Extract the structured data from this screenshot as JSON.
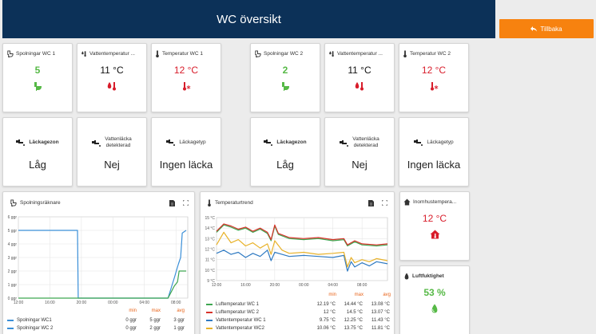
{
  "header": {
    "title": "WC översikt"
  },
  "back_button": {
    "label": "Tillbaka"
  },
  "wc1": {
    "flush": {
      "title": "Spolningar WC 1",
      "value": "5"
    },
    "water_temp": {
      "title": "Vattentemperatur ...",
      "value": "11 °C"
    },
    "temp": {
      "title": "Temperatur WC 1",
      "value": "12 °C"
    },
    "leak_zone": {
      "title": "Läckagezon",
      "value": "Låg"
    },
    "leak_detected": {
      "title_line1": "Vattenläcka",
      "title_line2": "detekterad",
      "value": "Nej"
    },
    "leak_type": {
      "title": "Läckagetyp",
      "value": "Ingen läcka"
    }
  },
  "wc2": {
    "flush": {
      "title": "Spolningar WC 2",
      "value": "2"
    },
    "water_temp": {
      "title": "Vattentemperatur ...",
      "value": "11 °C"
    },
    "temp": {
      "title": "Temperatur WC 2",
      "value": "12 °C"
    },
    "leak_zone": {
      "title": "Läckagezon",
      "value": "Låg"
    },
    "leak_detected": {
      "title_line1": "Vattenläcka",
      "title_line2": "detekterad",
      "value": "Nej"
    },
    "leak_type": {
      "title": "Läckagetyp",
      "value": "Ingen läcka"
    }
  },
  "indoor_temp": {
    "title": "Inomhustempera...",
    "value": "12 °C"
  },
  "humidity": {
    "title": "Luftfuktighet",
    "value": "53 %"
  },
  "colors": {
    "green": "#56b946",
    "red": "#d81c2a",
    "orange": "#f7820f",
    "header": "#0c3158"
  },
  "legend_headers": {
    "min": "min",
    "max": "max",
    "avg": "avg"
  },
  "chart_data": [
    {
      "type": "line",
      "title": "Spolningsräknare",
      "x_ticks": [
        "12:00",
        "16:00",
        "20:00",
        "00:00",
        "04:00",
        "08:00"
      ],
      "y_ticks": [
        "0 ggr",
        "1 ggr",
        "2 ggr",
        "3 ggr",
        "4 ggr",
        "5 ggr",
        "6 ggr"
      ],
      "ylim": [
        0,
        6
      ],
      "x_hours": [
        0,
        4,
        8,
        12,
        16,
        20
      ],
      "xlim_hours": [
        0,
        21.5
      ],
      "series": [
        {
          "name": "Spolningar WC1",
          "color": "#3a8fd8",
          "min": "0 ggr",
          "max": "5 ggr",
          "avg": "3 ggr",
          "points": [
            [
              0,
              5
            ],
            [
              7.5,
              5
            ],
            [
              7.6,
              0
            ],
            [
              19.0,
              0
            ],
            [
              19.8,
              1.5
            ],
            [
              20.3,
              2.5
            ],
            [
              20.6,
              3
            ],
            [
              20.8,
              4.8
            ],
            [
              21.3,
              5
            ]
          ]
        },
        {
          "name": "Spolningar WC 2",
          "color": "#3da650",
          "min": "0 ggr",
          "max": "2 ggr",
          "avg": "1 ggr",
          "points": [
            [
              0,
              0
            ],
            [
              19.0,
              0
            ],
            [
              19.8,
              0.9
            ],
            [
              20.2,
              1.2
            ],
            [
              20.4,
              2
            ],
            [
              21.3,
              2
            ]
          ]
        }
      ]
    },
    {
      "type": "line",
      "title": "Temperaturtrend",
      "x_ticks": [
        "12:00",
        "16:00",
        "20:00",
        "00:00",
        "04:00",
        "08:00"
      ],
      "y_ticks": [
        "9 °C",
        "10 °C",
        "11 °C",
        "12 °C",
        "13 °C",
        "14 °C",
        "15 °C"
      ],
      "ylim": [
        9,
        15
      ],
      "x_hours": [
        0,
        4,
        8,
        12,
        16,
        20
      ],
      "xlim_hours": [
        0,
        23.5
      ],
      "series": [
        {
          "name": "Luftemperatur WC 1",
          "color": "#3da650",
          "min": "12.19 °C",
          "max": "14.44 °C",
          "avg": "13.08 °C",
          "points": [
            [
              0,
              13.6
            ],
            [
              1,
              14.3
            ],
            [
              2,
              14.1
            ],
            [
              3,
              13.8
            ],
            [
              4,
              14.0
            ],
            [
              5,
              13.6
            ],
            [
              6,
              13.9
            ],
            [
              7,
              13.5
            ],
            [
              7.5,
              12.8
            ],
            [
              8,
              14.2
            ],
            [
              8.5,
              13.4
            ],
            [
              10,
              13.0
            ],
            [
              12,
              12.9
            ],
            [
              14,
              13.0
            ],
            [
              16,
              12.8
            ],
            [
              17.5,
              12.9
            ],
            [
              18,
              12.3
            ],
            [
              19,
              12.7
            ],
            [
              20,
              12.4
            ],
            [
              22,
              12.3
            ],
            [
              23.5,
              12.4
            ]
          ]
        },
        {
          "name": "Luftemperatur WC 2",
          "color": "#d8322a",
          "min": "12 °C",
          "max": "14.5 °C",
          "avg": "13.07 °C",
          "points": [
            [
              0,
              13.7
            ],
            [
              1,
              14.4
            ],
            [
              2,
              14.2
            ],
            [
              3,
              13.9
            ],
            [
              4,
              14.1
            ],
            [
              5,
              13.7
            ],
            [
              6,
              14.0
            ],
            [
              7,
              13.6
            ],
            [
              7.5,
              12.9
            ],
            [
              8,
              14.3
            ],
            [
              8.5,
              13.5
            ],
            [
              10,
              13.1
            ],
            [
              12,
              13.0
            ],
            [
              14,
              13.1
            ],
            [
              16,
              12.9
            ],
            [
              17.5,
              13.0
            ],
            [
              18,
              12.4
            ],
            [
              19,
              12.8
            ],
            [
              20,
              12.5
            ],
            [
              22,
              12.4
            ],
            [
              23.5,
              12.5
            ]
          ]
        },
        {
          "name": "Vattentemperatur WC 1",
          "color": "#2f7ac2",
          "min": "9.75 °C",
          "max": "12.25 °C",
          "avg": "11.43 °C",
          "points": [
            [
              0,
              11.6
            ],
            [
              1,
              11.9
            ],
            [
              2,
              11.5
            ],
            [
              3,
              11.7
            ],
            [
              4,
              11.2
            ],
            [
              5,
              11.6
            ],
            [
              6,
              11.3
            ],
            [
              7,
              11.9
            ],
            [
              7.5,
              10.9
            ],
            [
              8,
              11.7
            ],
            [
              9,
              11.5
            ],
            [
              10,
              11.3
            ],
            [
              12,
              11.4
            ],
            [
              14,
              11.3
            ],
            [
              16,
              11.2
            ],
            [
              17.5,
              11.4
            ],
            [
              18,
              9.9
            ],
            [
              18.5,
              10.8
            ],
            [
              19,
              10.3
            ],
            [
              20,
              10.7
            ],
            [
              21,
              10.4
            ],
            [
              22,
              10.8
            ],
            [
              23.5,
              10.6
            ]
          ]
        },
        {
          "name": "Vattentemperatur WC2",
          "color": "#e8b22a",
          "min": "10.06 °C",
          "max": "13.75 °C",
          "avg": "11.81 °C",
          "points": [
            [
              0,
              12.4
            ],
            [
              1,
              13.6
            ],
            [
              2,
              12.6
            ],
            [
              3,
              12.9
            ],
            [
              4,
              12.3
            ],
            [
              5,
              12.6
            ],
            [
              6,
              12.1
            ],
            [
              7,
              12.5
            ],
            [
              7.5,
              11.5
            ],
            [
              8,
              12.8
            ],
            [
              9,
              11.9
            ],
            [
              10,
              11.6
            ],
            [
              12,
              11.7
            ],
            [
              14,
              11.5
            ],
            [
              16,
              11.6
            ],
            [
              17.5,
              11.7
            ],
            [
              18,
              10.3
            ],
            [
              18.5,
              11.2
            ],
            [
              19,
              10.7
            ],
            [
              20,
              11.0
            ],
            [
              21,
              10.8
            ],
            [
              22,
              11.1
            ],
            [
              23.5,
              10.9
            ]
          ]
        }
      ]
    }
  ]
}
